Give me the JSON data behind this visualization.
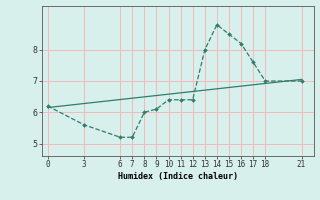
{
  "xlabel": "Humidex (Indice chaleur)",
  "line_color": "#2e7d6e",
  "bg_color": "#d8f0ec",
  "grid_color": "#f5b8b8",
  "data_x": [
    0,
    3,
    6,
    7,
    8,
    9,
    10,
    11,
    12,
    13,
    14,
    15,
    16,
    17,
    18,
    21
  ],
  "data_y": [
    6.2,
    5.6,
    5.2,
    5.2,
    6.0,
    6.1,
    6.4,
    6.4,
    6.4,
    8.0,
    8.8,
    8.5,
    8.2,
    7.6,
    7.0,
    7.0
  ],
  "trend_x": [
    0,
    21
  ],
  "trend_y": [
    6.15,
    7.05
  ],
  "xlim": [
    -0.5,
    22
  ],
  "ylim": [
    4.6,
    9.4
  ],
  "xticks": [
    0,
    3,
    6,
    7,
    8,
    9,
    10,
    11,
    12,
    13,
    14,
    15,
    16,
    17,
    18,
    21
  ],
  "yticks": [
    5,
    6,
    7,
    8
  ],
  "tick_fontsize": 5.5,
  "xlabel_fontsize": 6.0
}
